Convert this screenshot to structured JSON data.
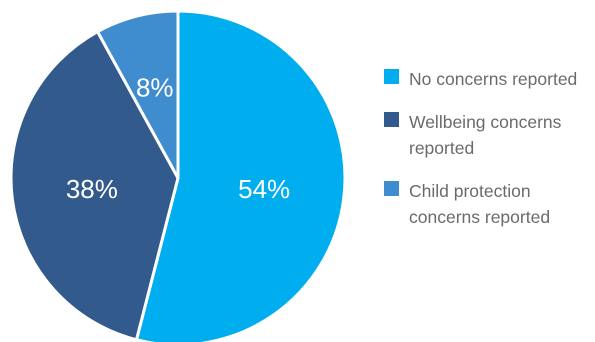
{
  "chart_data": {
    "type": "pie",
    "categories": [
      "No concerns reported",
      "Wellbeing concerns reported",
      "Child protection concerns reported"
    ],
    "values": [
      54,
      38,
      8
    ],
    "labels": [
      "54%",
      "38%",
      "8%"
    ],
    "colors": [
      "#00aeef",
      "#335a8c",
      "#3f8ccf"
    ],
    "legend": "right",
    "title": "",
    "start": "top",
    "direction": "clockwise"
  },
  "legend": {
    "items": [
      {
        "label": "No concerns reported",
        "color": "#00aeef"
      },
      {
        "label": "Wellbeing concerns reported",
        "color": "#335a8c"
      },
      {
        "label": "Child protection concerns reported",
        "color": "#3f8ccf"
      }
    ]
  }
}
